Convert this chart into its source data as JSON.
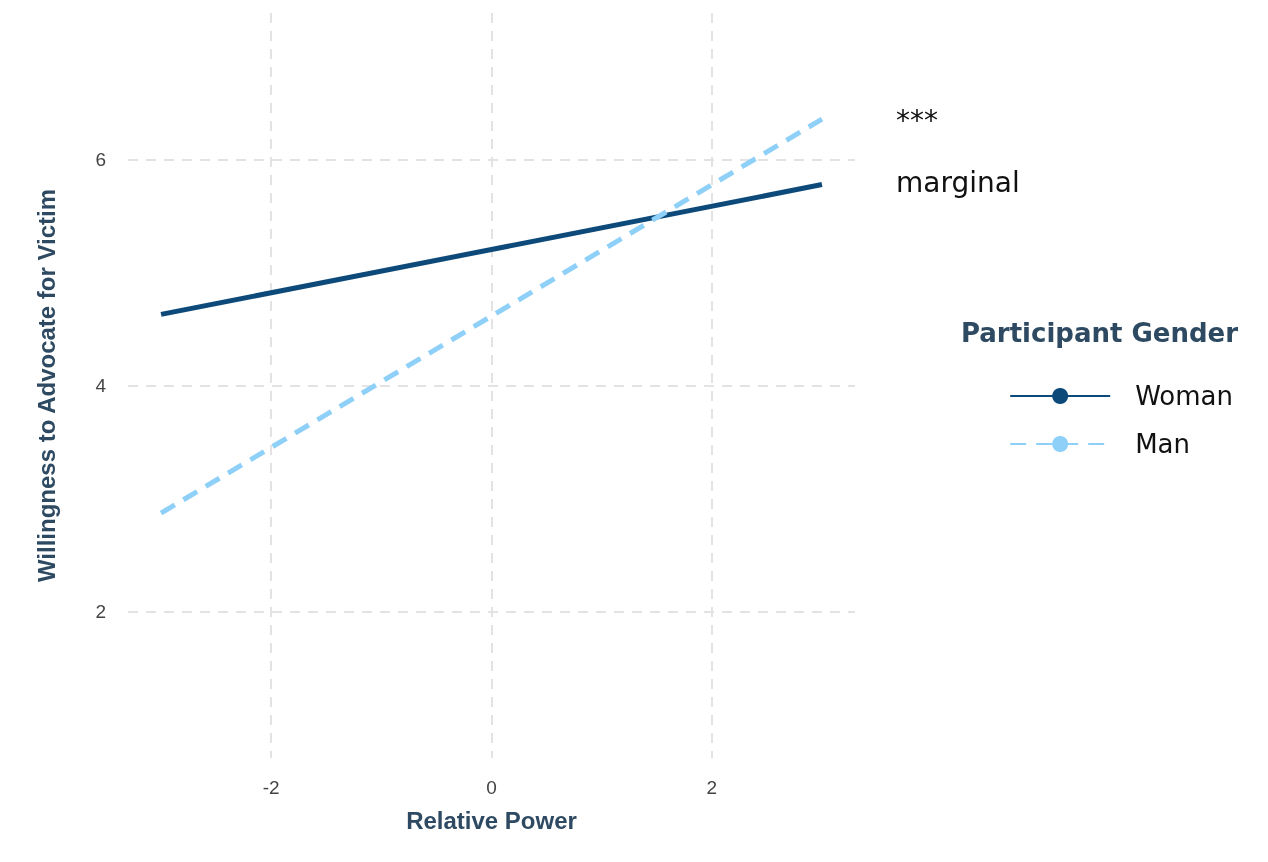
{
  "chart_data": {
    "type": "line",
    "xlabel": "Relative Power",
    "ylabel": "Willingness to Advocate for Victim",
    "legend_title": "Participant Gender",
    "x": [
      -3,
      3
    ],
    "series": [
      {
        "name": "Woman",
        "color": "#0d4a7a",
        "values": [
          4.63,
          5.78
        ],
        "line_style": "solid"
      },
      {
        "name": "Man",
        "color": "#8fd0f8",
        "values": [
          2.87,
          6.36
        ],
        "line_style": "dashed"
      }
    ],
    "xlim": [
      -3.3,
      3.3
    ],
    "xticks": [
      -2,
      0,
      2
    ],
    "ylim": [
      0.7,
      7.3
    ],
    "yticks": [
      2,
      4,
      6
    ],
    "grid": true,
    "legend": "right",
    "marker": "none",
    "annotations": [
      "***",
      "marginal"
    ]
  }
}
